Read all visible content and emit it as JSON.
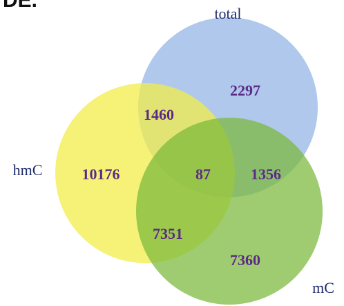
{
  "title": "DE.",
  "sets": [
    {
      "label": "total"
    },
    {
      "label": "hmC"
    },
    {
      "label": "mC"
    }
  ],
  "regions": [
    {
      "value": 2297
    },
    {
      "value": 1460
    },
    {
      "value": 10176
    },
    {
      "value": 87
    },
    {
      "value": 1356
    },
    {
      "value": 7351
    },
    {
      "value": 7360
    }
  ]
}
